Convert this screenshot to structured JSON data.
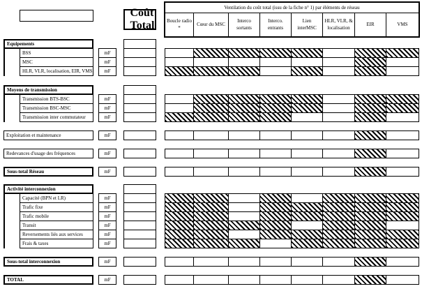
{
  "colors": {
    "line": "#000000",
    "background": "#ffffff"
  },
  "unit_label": "mF",
  "header": {
    "cout_total": "Coût Total",
    "ventilation_title": "Ventilation du coût total (issu de la fiche n° 1) par éléments de réseau",
    "columns": [
      "Boucle radio *",
      "Cœur du MSC",
      "Interco sortants",
      "Interco. entrants",
      "Lien interMSC",
      "HLR, VLR, & localisation",
      "EIR",
      "VMS"
    ]
  },
  "rows": [
    {
      "id": "equipements",
      "type": "section",
      "label": "Equipements"
    },
    {
      "id": "bss",
      "type": "sub",
      "label": "BSS",
      "hatch": [
        0,
        1,
        1,
        1,
        1,
        0,
        1,
        1
      ]
    },
    {
      "id": "msc",
      "type": "sub",
      "label": "MSC",
      "hatch": [
        0,
        0,
        0,
        0,
        0,
        0,
        1,
        0
      ]
    },
    {
      "id": "hlr-vlr",
      "type": "sub",
      "label": "HLR, VLR, localisation, EIR, VMS",
      "hatch": [
        1,
        1,
        1,
        0,
        1,
        0,
        1,
        0
      ]
    },
    {
      "id": "moyens",
      "type": "section",
      "label": "Moyens de transmission"
    },
    {
      "id": "trans-bts-bsc",
      "type": "sub",
      "label": "Transmission BTS-BSC",
      "hatch": [
        0,
        1,
        1,
        1,
        1,
        0,
        1,
        1
      ]
    },
    {
      "id": "trans-bsc-msc",
      "type": "sub",
      "label": "Transmission BSC-MSC",
      "hatch": [
        0,
        1,
        1,
        1,
        1,
        0,
        1,
        1
      ]
    },
    {
      "id": "trans-inter",
      "type": "sub",
      "label": "Transmission inter commutateur",
      "hatch": [
        1,
        1,
        1,
        1,
        0,
        0,
        1,
        0
      ]
    },
    {
      "id": "exploitation",
      "type": "standalone",
      "label": "Exploitation et maintenance",
      "hatch": [
        0,
        0,
        0,
        0,
        0,
        0,
        1,
        0
      ]
    },
    {
      "id": "redevances",
      "type": "standalone",
      "label": "Redevances d'usage des fréquences",
      "hatch": [
        0,
        0,
        0,
        0,
        0,
        0,
        1,
        0
      ]
    },
    {
      "id": "sous-total-reseau",
      "type": "standalone-bold",
      "label": "Sous-total Réseau",
      "hatch": [
        0,
        0,
        0,
        0,
        0,
        0,
        1,
        0
      ]
    },
    {
      "id": "activite",
      "type": "section",
      "label": "Activité interconnexion"
    },
    {
      "id": "capacite",
      "type": "sub",
      "label": "Capacité (BPN et LR)",
      "hatch": [
        1,
        1,
        0,
        1,
        0,
        1,
        1,
        1
      ]
    },
    {
      "id": "trafic-fixe",
      "type": "sub",
      "label": "Trafic fixe",
      "hatch": [
        1,
        1,
        0,
        1,
        1,
        1,
        1,
        1
      ]
    },
    {
      "id": "trafic-mobile",
      "type": "sub",
      "label": "Trafic mobile",
      "hatch": [
        1,
        1,
        0,
        1,
        1,
        1,
        1,
        1
      ]
    },
    {
      "id": "transit",
      "type": "sub",
      "label": "Transit",
      "hatch": [
        1,
        1,
        1,
        1,
        0,
        1,
        1,
        0
      ]
    },
    {
      "id": "reversements",
      "type": "sub",
      "label": "Reversements liés aux services",
      "hatch": [
        1,
        1,
        0,
        1,
        1,
        1,
        1,
        1
      ]
    },
    {
      "id": "frais-taxes",
      "type": "sub",
      "label": "Frais & taxes",
      "hatch": [
        1,
        1,
        1,
        0,
        1,
        1,
        1,
        1
      ]
    },
    {
      "id": "sous-total-interco",
      "type": "standalone-bold",
      "label": "Sous-total interconnexion",
      "hatch": [
        0,
        0,
        0,
        0,
        0,
        0,
        1,
        0
      ]
    },
    {
      "id": "total",
      "type": "standalone-bold",
      "label": "TOTAL",
      "hatch": [
        0,
        0,
        0,
        0,
        0,
        0,
        1,
        0
      ]
    }
  ]
}
